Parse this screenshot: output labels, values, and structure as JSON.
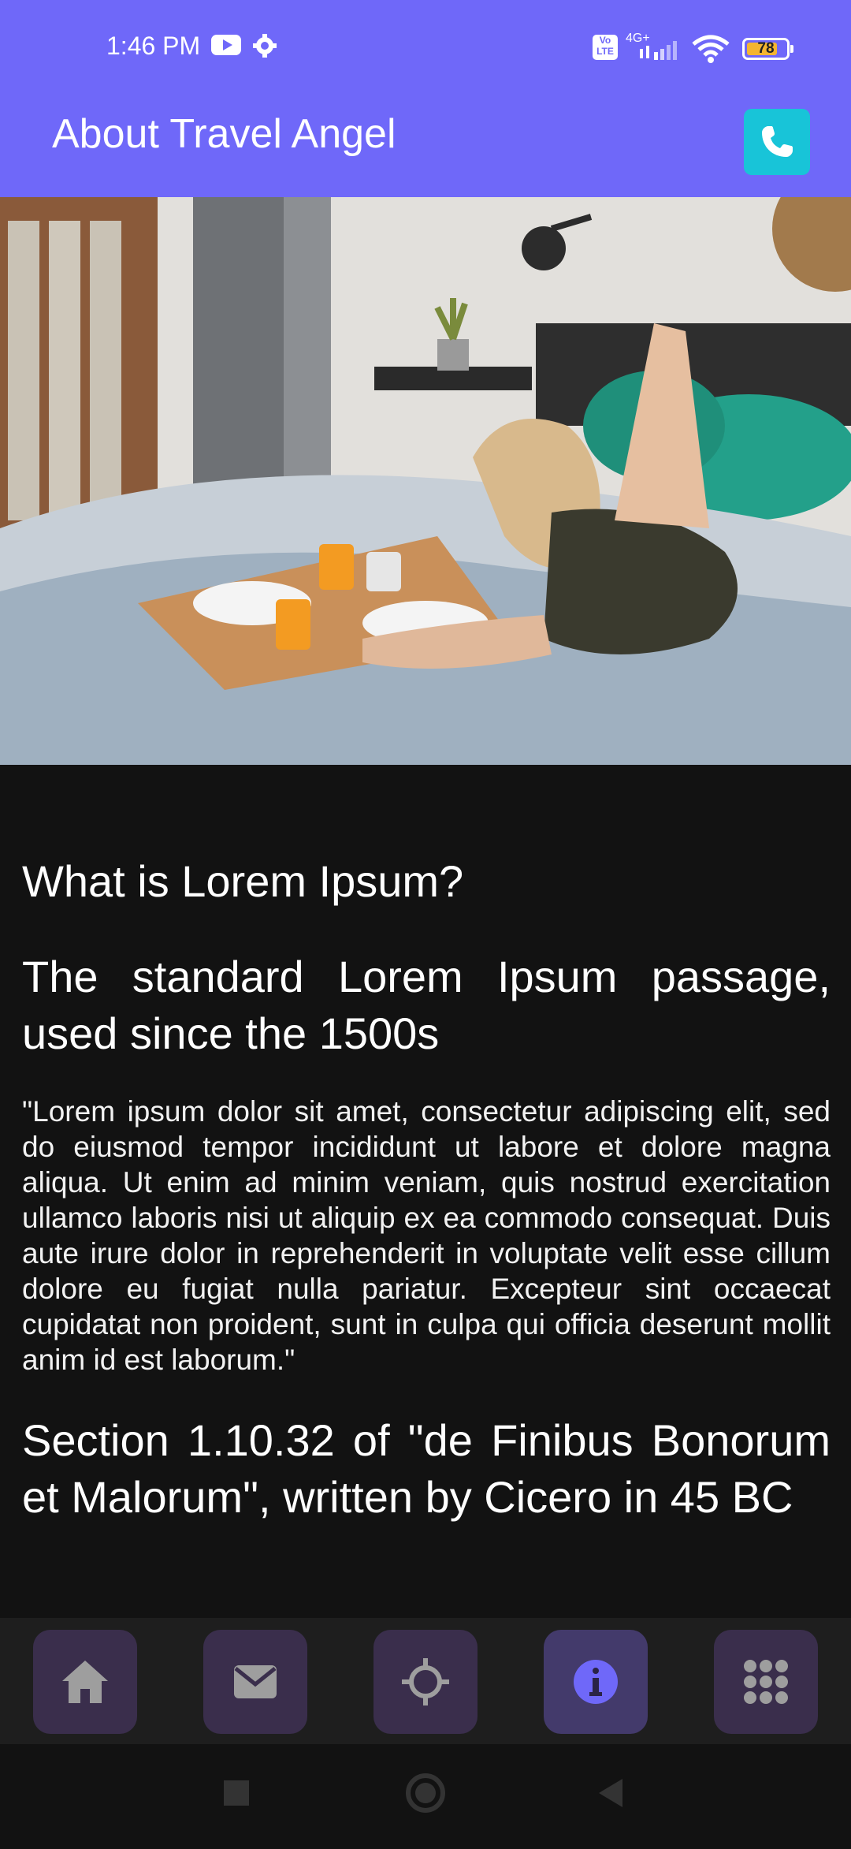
{
  "status_bar": {
    "time": "1:46 PM",
    "network_type": "4G+",
    "volte_label": "Vo LTE",
    "battery_percent": "78"
  },
  "app_bar": {
    "title": "About Travel Angel",
    "call_icon": "phone-icon"
  },
  "hero_image": {
    "icon": "photo-woman-breakfast-in-bed"
  },
  "content": {
    "heading1": "What is Lorem Ipsum?",
    "heading2": "The standard Lorem Ipsum passage, used since the 1500s",
    "paragraph": "\"Lorem ipsum dolor sit amet, consectetur adipiscing elit, sed do eiusmod tempor incididunt ut labore et dolore magna aliqua. Ut enim ad minim veniam, quis nostrud exercitation ullamco laboris nisi ut aliquip ex ea commodo consequat. Duis aute irure dolor in reprehenderit in voluptate velit esse cillum dolore eu fugiat nulla pariatur. Excepteur sint occaecat cupidatat non proident, sunt in culpa qui officia deserunt mollit anim id est laborum.\"",
    "heading3": "Section 1.10.32 of \"de Finibus Bonorum et Malorum\", written by Cicero in 45 BC"
  },
  "bottom_nav": {
    "items": [
      {
        "icon": "home-icon",
        "active": false
      },
      {
        "icon": "mail-icon",
        "active": false
      },
      {
        "icon": "location-icon",
        "active": false
      },
      {
        "icon": "info-icon",
        "active": true
      },
      {
        "icon": "grid-icon",
        "active": false
      }
    ]
  },
  "colors": {
    "app_bar": "#6f68f9",
    "call_button": "#18c4d8",
    "background": "#121212",
    "nav_button": "#3a2e4c",
    "active_icon": "#6f68f9"
  }
}
